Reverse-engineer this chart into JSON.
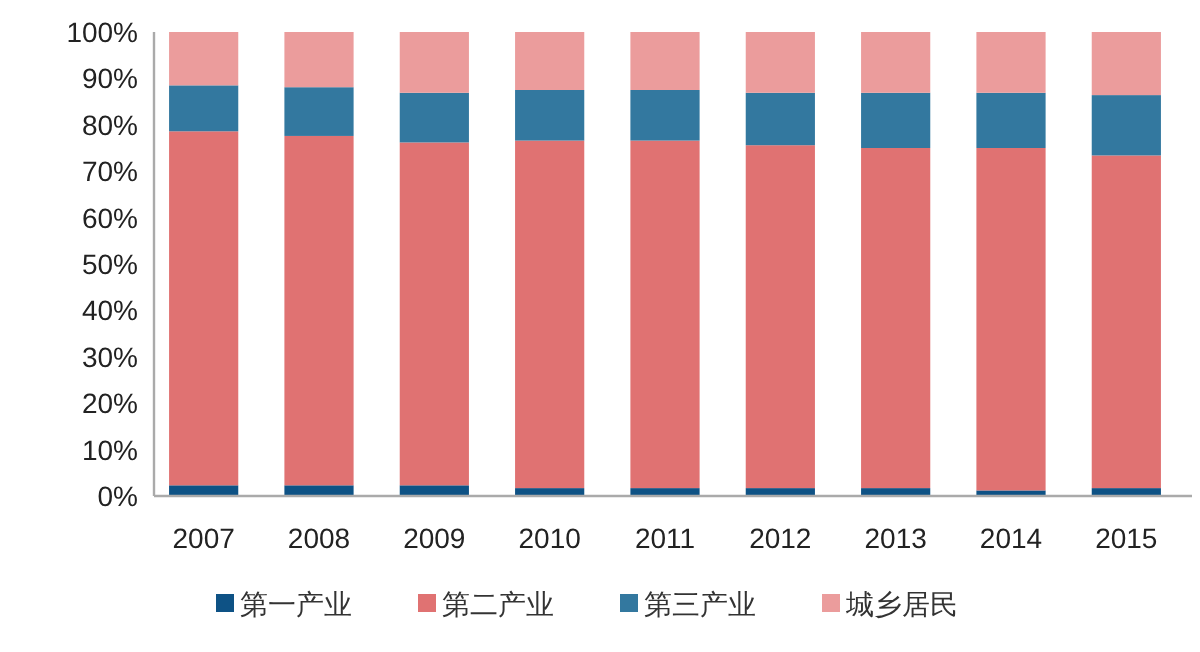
{
  "chart_data": {
    "type": "bar",
    "stacked": true,
    "categories": [
      "2007",
      "2008",
      "2009",
      "2010",
      "2011",
      "2012",
      "2013",
      "2014",
      "2015"
    ],
    "series": [
      {
        "name": "第一产业",
        "color": "#0e5285",
        "values": [
          2.3,
          2.3,
          2.3,
          1.7,
          1.7,
          1.7,
          1.7,
          1.2,
          1.7
        ]
      },
      {
        "name": "第二产业",
        "color": "#e07272",
        "values": [
          76.3,
          75.3,
          73.9,
          74.9,
          74.9,
          73.9,
          73.3,
          73.8,
          71.7
        ]
      },
      {
        "name": "第三产业",
        "color": "#33789f",
        "values": [
          9.9,
          10.5,
          10.7,
          10.9,
          10.9,
          11.3,
          11.9,
          11.9,
          13.0
        ]
      },
      {
        "name": "城乡居民",
        "color": "#eb9c9c",
        "values": [
          11.5,
          11.9,
          13.1,
          12.5,
          12.5,
          13.1,
          13.1,
          13.1,
          13.6
        ]
      }
    ],
    "ylim": [
      0,
      100
    ],
    "yticks": [
      {
        "value": 0,
        "label": "0%"
      },
      {
        "value": 10,
        "label": "10%"
      },
      {
        "value": 20,
        "label": "20%"
      },
      {
        "value": 30,
        "label": "30%"
      },
      {
        "value": 40,
        "label": "40%"
      },
      {
        "value": 50,
        "label": "50%"
      },
      {
        "value": 60,
        "label": "60%"
      },
      {
        "value": 70,
        "label": "70%"
      },
      {
        "value": 80,
        "label": "80%"
      },
      {
        "value": 90,
        "label": "90%"
      },
      {
        "value": 100,
        "label": "100%"
      }
    ],
    "legend": "bottom"
  }
}
